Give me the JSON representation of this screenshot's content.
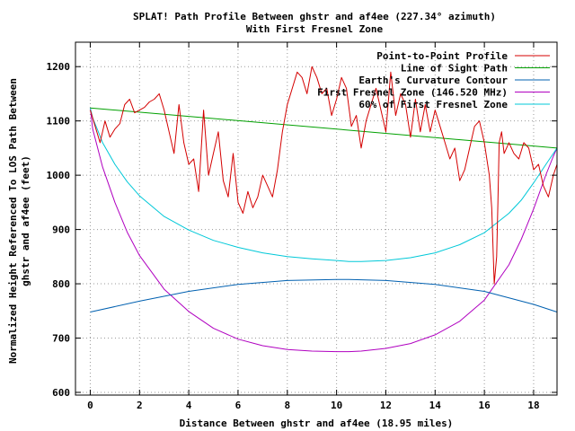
{
  "chart_data": {
    "type": "line",
    "title": "SPLAT! Path Profile Between ghstr and af4ee (227.34° azimuth)",
    "subtitle": "With First Fresnel Zone",
    "xlabel": "Distance Between ghstr and af4ee (18.95 miles)",
    "ylabel_line1": "Normalized Height Referenced To LOS Path Between",
    "ylabel_line2": "ghstr and af4ee (feet)",
    "xlim": [
      -0.6,
      18.95
    ],
    "ylim": [
      595,
      1245
    ],
    "xticks": [
      0,
      2,
      4,
      6,
      8,
      10,
      12,
      14,
      16,
      18
    ],
    "yticks": [
      600,
      700,
      800,
      900,
      1000,
      1100,
      1200
    ],
    "grid": true,
    "legend_position": "top-right",
    "series": [
      {
        "name": "Point-to-Point Profile",
        "color": "#d40000",
        "x": [
          0,
          0.2,
          0.4,
          0.6,
          0.8,
          1.0,
          1.2,
          1.4,
          1.6,
          1.8,
          2.0,
          2.2,
          2.4,
          2.6,
          2.8,
          3.0,
          3.2,
          3.4,
          3.6,
          3.8,
          4.0,
          4.2,
          4.4,
          4.6,
          4.8,
          5.0,
          5.2,
          5.4,
          5.6,
          5.8,
          6.0,
          6.2,
          6.4,
          6.6,
          6.8,
          7.0,
          7.2,
          7.4,
          7.6,
          7.8,
          8.0,
          8.2,
          8.4,
          8.6,
          8.8,
          9.0,
          9.2,
          9.4,
          9.6,
          9.8,
          10.0,
          10.2,
          10.4,
          10.6,
          10.8,
          11.0,
          11.2,
          11.4,
          11.6,
          11.8,
          12.0,
          12.2,
          12.4,
          12.6,
          12.8,
          13.0,
          13.2,
          13.4,
          13.6,
          13.8,
          14.0,
          14.2,
          14.4,
          14.6,
          14.8,
          15.0,
          15.2,
          15.4,
          15.6,
          15.8,
          16.0,
          16.2,
          16.3,
          16.4,
          16.5,
          16.55,
          16.6,
          16.7,
          16.8,
          17.0,
          17.2,
          17.4,
          17.6,
          17.8,
          18.0,
          18.2,
          18.4,
          18.6,
          18.8,
          18.95
        ],
        "y": [
          1120,
          1090,
          1060,
          1100,
          1070,
          1085,
          1095,
          1130,
          1140,
          1115,
          1120,
          1125,
          1135,
          1140,
          1150,
          1120,
          1080,
          1040,
          1130,
          1060,
          1020,
          1030,
          970,
          1120,
          1000,
          1040,
          1080,
          990,
          960,
          1040,
          950,
          930,
          970,
          940,
          960,
          1000,
          980,
          960,
          1010,
          1080,
          1130,
          1160,
          1190,
          1180,
          1150,
          1200,
          1180,
          1150,
          1160,
          1110,
          1140,
          1180,
          1160,
          1090,
          1110,
          1050,
          1100,
          1130,
          1160,
          1120,
          1080,
          1190,
          1110,
          1150,
          1130,
          1070,
          1140,
          1080,
          1130,
          1080,
          1120,
          1090,
          1060,
          1030,
          1050,
          990,
          1010,
          1050,
          1090,
          1100,
          1060,
          1000,
          940,
          800,
          850,
          950,
          1060,
          1080,
          1040,
          1060,
          1040,
          1030,
          1060,
          1050,
          1010,
          1020,
          980,
          960,
          1000,
          1020
        ]
      },
      {
        "name": "Line of Sight Path",
        "color": "#00a000",
        "x": [
          0,
          18.95
        ],
        "y": [
          1124,
          1050
        ]
      },
      {
        "name": "Earth's Curvature Contour",
        "color": "#0060b0",
        "x": [
          0,
          2,
          4,
          6,
          8,
          10,
          10.5,
          12,
          14,
          16,
          18,
          18.95
        ],
        "y": [
          748,
          768,
          786,
          799,
          806,
          808,
          808,
          806,
          799,
          786,
          762,
          748
        ]
      },
      {
        "name": "First Fresnel Zone (146.520 MHz)",
        "color": "#b000c0",
        "x": [
          0,
          0.1,
          0.3,
          0.5,
          1,
          1.5,
          2,
          3,
          4,
          5,
          6,
          7,
          8,
          9,
          10,
          10.5,
          11,
          12,
          13,
          14,
          15,
          16,
          17,
          17.5,
          18,
          18.5,
          18.8,
          18.95
        ],
        "y": [
          1124,
          1085,
          1050,
          1015,
          950,
          895,
          852,
          790,
          749,
          718,
          698,
          686,
          679,
          676,
          675,
          675,
          676,
          681,
          690,
          706,
          731,
          770,
          835,
          882,
          938,
          1001,
          1035,
          1050
        ]
      },
      {
        "name": "60% of First Fresnel Zone",
        "color": "#00c8d8",
        "x": [
          0,
          0.1,
          0.3,
          0.5,
          1,
          1.5,
          2,
          3,
          4,
          5,
          6,
          7,
          8,
          9,
          10,
          10.5,
          11,
          12,
          13,
          14,
          15,
          16,
          17,
          17.5,
          18,
          18.5,
          18.8,
          18.95
        ],
        "y": [
          1124,
          1105,
          1083,
          1060,
          1020,
          988,
          962,
          924,
          899,
          880,
          867,
          857,
          850,
          846,
          843,
          841,
          841,
          843,
          848,
          857,
          872,
          894,
          930,
          954,
          986,
          1020,
          1040,
          1050
        ]
      }
    ]
  }
}
